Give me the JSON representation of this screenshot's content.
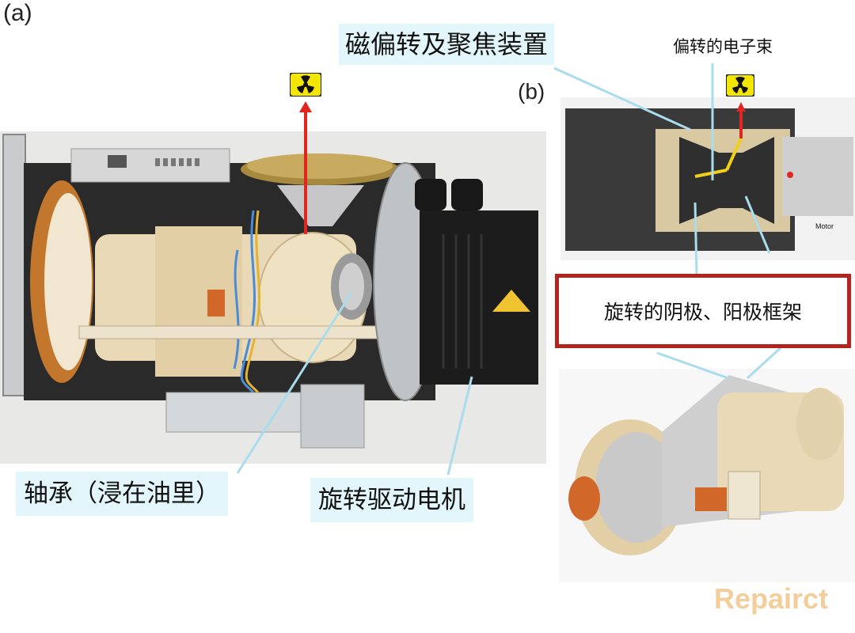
{
  "panels": {
    "a": "(a)",
    "b": "(b)"
  },
  "labels": {
    "deflection_focus": "磁偏转及聚焦装置",
    "deflected_beam": "偏转的电子束",
    "rotating_frame": "旋转的阴极、阳极框架",
    "bearing": "轴承（浸在油里）",
    "drive_motor": "旋转驱动电机",
    "motor_small": "Motor"
  },
  "watermark": "Repairct",
  "colors": {
    "callout_bg": "#e3f6fb",
    "box_border": "#b3241f",
    "arrow_red": "#e0261f",
    "leader_line": "#a9dcec",
    "radiation_yellow": "#f3e600"
  },
  "icons": [
    "radiation-icon"
  ]
}
